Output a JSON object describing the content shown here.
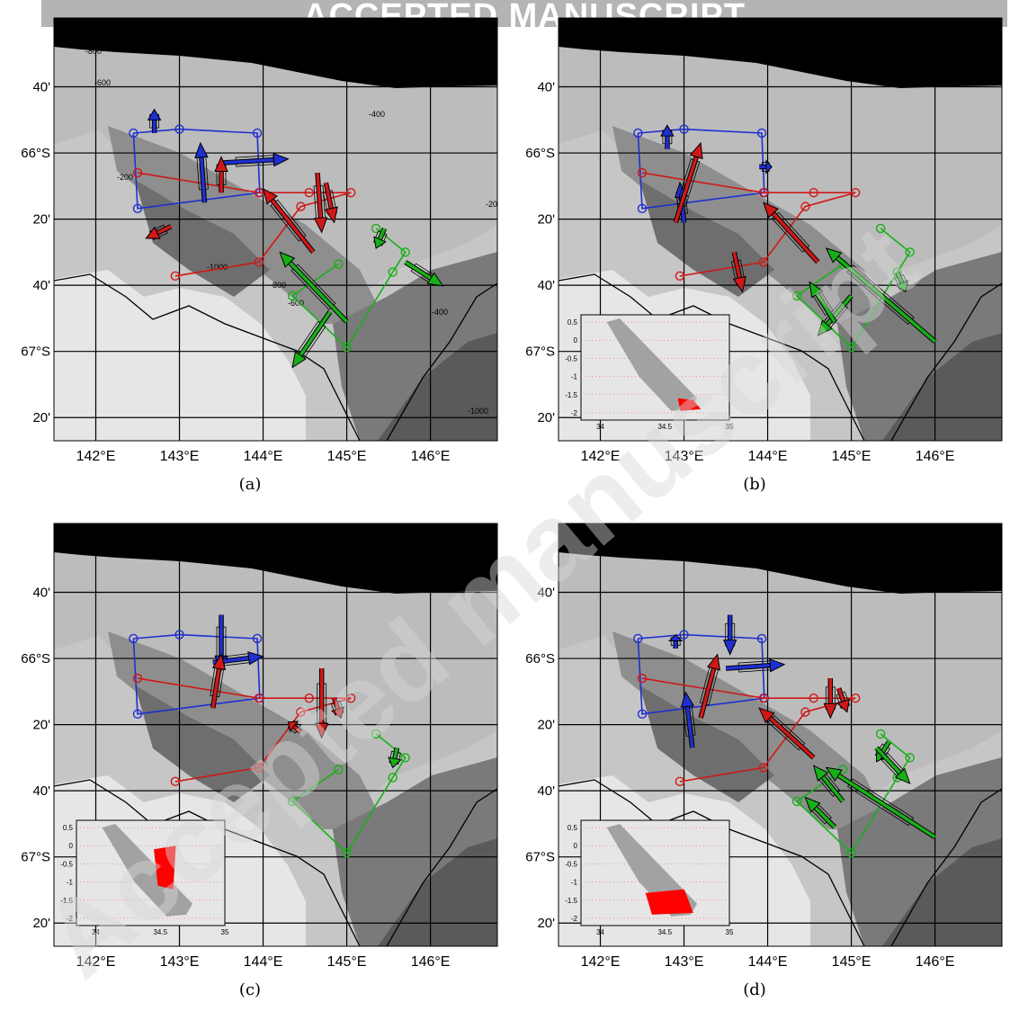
{
  "banner": {
    "text": "ACCEPTED MANUSCRIPT"
  },
  "watermark": {
    "text": "Accepted manuscript"
  },
  "axes": {
    "lat_tick_labels": [
      "40'",
      "66°S",
      "20'",
      "40'",
      "67°S",
      "20'"
    ],
    "lon_tick_labels": [
      "142°E",
      "143°E",
      "144°E",
      "145°E",
      "146°E"
    ],
    "lon_range": [
      141.5,
      146.8
    ],
    "lat_range": [
      -67.45,
      -65.32
    ],
    "lat_ticks": [
      -65.6667,
      -66.0,
      -66.3333,
      -66.6667,
      -67.0,
      -67.3333
    ],
    "lon_ticks": [
      142,
      143,
      144,
      145,
      146
    ]
  },
  "colors": {
    "blue_section": "#1f2fd0",
    "red_section": "#d01818",
    "green_section": "#18b018",
    "land": "#000000",
    "shelf": "#e6e6e6",
    "inset_ts": "#ff0000",
    "inset_background": "#9a9a9a"
  },
  "legend_of_stations": {
    "blue": [
      [
        142.45,
        -65.9
      ],
      [
        143.0,
        -65.88
      ],
      [
        143.93,
        -65.9
      ],
      [
        143.96,
        -66.2
      ],
      [
        142.5,
        -66.28
      ]
    ],
    "red": [
      [
        142.5,
        -66.1
      ],
      [
        143.95,
        -66.2
      ],
      [
        144.55,
        -66.2
      ],
      [
        145.05,
        -66.2
      ],
      [
        144.45,
        -66.27
      ],
      [
        143.95,
        -66.55
      ],
      [
        142.95,
        -66.62
      ]
    ],
    "green": [
      [
        145.35,
        -66.38
      ],
      [
        145.7,
        -66.5
      ],
      [
        145.55,
        -66.6
      ],
      [
        145.0,
        -66.98
      ],
      [
        144.35,
        -66.72
      ],
      [
        144.9,
        -66.56
      ]
    ]
  },
  "contour_labels": [
    "-1000",
    "-800",
    "-600",
    "-400",
    "-200"
  ],
  "panels": [
    {
      "id": "a",
      "caption": "(a)",
      "has_inset": false,
      "arrows": [
        {
          "c": "blue",
          "x": 142.7,
          "y": -65.9,
          "dx": 0,
          "dy": 0.12
        },
        {
          "c": "blue",
          "x": 143.3,
          "y": -66.25,
          "dx": -0.05,
          "dy": 0.3
        },
        {
          "c": "blue",
          "x": 143.5,
          "y": -66.05,
          "dx": 0.8,
          "dy": 0.02
        },
        {
          "c": "red",
          "x": 143.5,
          "y": -66.2,
          "dx": 0,
          "dy": 0.18
        },
        {
          "c": "red",
          "x": 142.9,
          "y": -66.37,
          "dx": -0.3,
          "dy": -0.06
        },
        {
          "c": "red",
          "x": 144.6,
          "y": -66.5,
          "dx": -0.6,
          "dy": 0.32
        },
        {
          "c": "red",
          "x": 144.65,
          "y": -66.1,
          "dx": 0.05,
          "dy": -0.3
        },
        {
          "c": "red",
          "x": 144.75,
          "y": -66.15,
          "dx": 0.1,
          "dy": -0.2
        },
        {
          "c": "green",
          "x": 145.7,
          "y": -66.55,
          "dx": 0.45,
          "dy": -0.12
        },
        {
          "c": "green",
          "x": 145.45,
          "y": -66.38,
          "dx": -0.1,
          "dy": -0.1
        },
        {
          "c": "green",
          "x": 145.0,
          "y": -66.85,
          "dx": -0.8,
          "dy": 0.35
        },
        {
          "c": "green",
          "x": 144.8,
          "y": -66.8,
          "dx": -0.45,
          "dy": -0.28
        }
      ]
    },
    {
      "id": "b",
      "caption": "(b)",
      "has_inset": true,
      "arrows": [
        {
          "c": "blue",
          "x": 142.8,
          "y": -65.98,
          "dx": 0,
          "dy": 0.12
        },
        {
          "c": "blue",
          "x": 143.0,
          "y": -66.35,
          "dx": -0.05,
          "dy": 0.2
        },
        {
          "c": "blue",
          "x": 143.9,
          "y": -66.07,
          "dx": 0.15,
          "dy": 0
        },
        {
          "c": "red",
          "x": 142.9,
          "y": -66.35,
          "dx": 0.3,
          "dy": 0.4
        },
        {
          "c": "red",
          "x": 143.6,
          "y": -66.5,
          "dx": 0.1,
          "dy": -0.2
        },
        {
          "c": "red",
          "x": 144.6,
          "y": -66.55,
          "dx": -0.65,
          "dy": 0.3
        },
        {
          "c": "green",
          "x": 145.55,
          "y": -66.6,
          "dx": 0.1,
          "dy": -0.1
        },
        {
          "c": "green",
          "x": 146.0,
          "y": -66.95,
          "dx": -1.3,
          "dy": 0.47
        },
        {
          "c": "green",
          "x": 145.0,
          "y": -66.72,
          "dx": -0.4,
          "dy": -0.2
        },
        {
          "c": "green",
          "x": 144.8,
          "y": -66.85,
          "dx": -0.3,
          "dy": 0.2
        }
      ]
    },
    {
      "id": "c",
      "caption": "(c)",
      "has_inset": true,
      "arrows": [
        {
          "c": "blue",
          "x": 143.5,
          "y": -65.78,
          "dx": 0,
          "dy": -0.28
        },
        {
          "c": "blue",
          "x": 143.4,
          "y": -66.02,
          "dx": 0.6,
          "dy": 0.03
        },
        {
          "c": "red",
          "x": 143.4,
          "y": -66.25,
          "dx": 0.1,
          "dy": 0.27
        },
        {
          "c": "red",
          "x": 144.7,
          "y": -66.05,
          "dx": 0,
          "dy": -0.35
        },
        {
          "c": "red",
          "x": 144.85,
          "y": -66.2,
          "dx": 0.08,
          "dy": -0.1
        },
        {
          "c": "red",
          "x": 144.45,
          "y": -66.37,
          "dx": -0.15,
          "dy": 0.05
        },
        {
          "c": "green",
          "x": 145.6,
          "y": -66.45,
          "dx": -0.05,
          "dy": -0.1
        }
      ]
    },
    {
      "id": "d",
      "caption": "(d)",
      "has_inset": true,
      "arrows": [
        {
          "c": "blue",
          "x": 142.9,
          "y": -65.95,
          "dx": 0,
          "dy": 0.07
        },
        {
          "c": "blue",
          "x": 143.55,
          "y": -65.78,
          "dx": 0,
          "dy": -0.2
        },
        {
          "c": "blue",
          "x": 143.5,
          "y": -66.05,
          "dx": 0.7,
          "dy": 0.02
        },
        {
          "c": "blue",
          "x": 143.1,
          "y": -66.45,
          "dx": -0.08,
          "dy": 0.28
        },
        {
          "c": "red",
          "x": 143.2,
          "y": -66.3,
          "dx": 0.2,
          "dy": 0.32
        },
        {
          "c": "red",
          "x": 144.75,
          "y": -66.1,
          "dx": 0,
          "dy": -0.2
        },
        {
          "c": "red",
          "x": 144.85,
          "y": -66.15,
          "dx": 0.1,
          "dy": -0.12
        },
        {
          "c": "red",
          "x": 144.55,
          "y": -66.5,
          "dx": -0.65,
          "dy": 0.25
        },
        {
          "c": "green",
          "x": 145.45,
          "y": -66.42,
          "dx": -0.15,
          "dy": -0.1
        },
        {
          "c": "green",
          "x": 145.3,
          "y": -66.45,
          "dx": 0.4,
          "dy": -0.18
        },
        {
          "c": "green",
          "x": 144.9,
          "y": -66.72,
          "dx": -0.35,
          "dy": 0.18
        },
        {
          "c": "green",
          "x": 146.0,
          "y": -66.9,
          "dx": -1.3,
          "dy": 0.35
        },
        {
          "c": "green",
          "x": 144.8,
          "y": -66.85,
          "dx": -0.35,
          "dy": 0.15
        }
      ]
    }
  ],
  "inset": {
    "y_tick_labels": [
      "0.5",
      "0",
      "-0.5",
      "-1",
      "-1.5",
      "-2"
    ],
    "x_tick_labels": [
      "34",
      "34.5",
      "35"
    ],
    "xlim": [
      33.85,
      35.0
    ],
    "ylim": [
      -2.2,
      0.7
    ]
  }
}
